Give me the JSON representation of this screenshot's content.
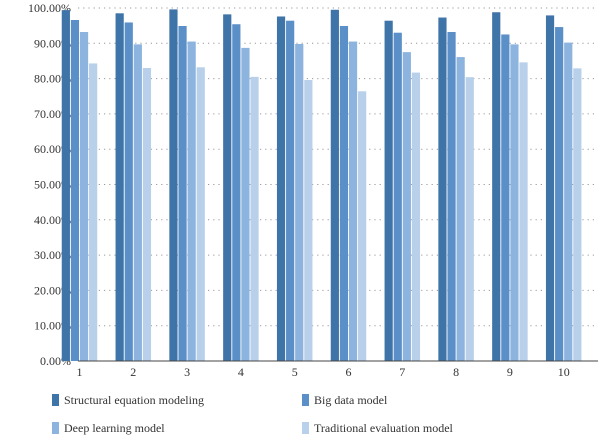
{
  "colors": {
    "series": [
      "#3f74a8",
      "#5b8fc8",
      "#8db4de",
      "#b9d0ea"
    ],
    "grid": "#9a9a9a",
    "axis": "#444444"
  },
  "chart_data": {
    "type": "bar",
    "categories": [
      "1",
      "2",
      "3",
      "4",
      "5",
      "6",
      "7",
      "8",
      "9",
      "10"
    ],
    "series": [
      {
        "name": "Structural equation modeling",
        "values": [
          99.4,
          98.5,
          99.6,
          98.2,
          97.6,
          99.5,
          96.4,
          97.3,
          98.8,
          97.9
        ]
      },
      {
        "name": "Big data model",
        "values": [
          96.6,
          95.9,
          94.9,
          95.4,
          96.4,
          94.9,
          93.0,
          93.2,
          92.5,
          94.6
        ]
      },
      {
        "name": "Deep learning model",
        "values": [
          93.2,
          89.7,
          90.5,
          88.7,
          89.8,
          90.5,
          87.5,
          86.1,
          89.7,
          90.2
        ]
      },
      {
        "name": "Traditional evaluation model",
        "values": [
          84.3,
          83.0,
          83.2,
          80.5,
          79.6,
          76.4,
          81.7,
          80.4,
          84.6,
          82.9
        ]
      }
    ],
    "ylim": [
      0,
      100
    ],
    "yticks": [
      "0.00%",
      "10.00%",
      "20.00%",
      "30.00%",
      "40.00%",
      "50.00%",
      "60.00%",
      "70.00%",
      "80.00%",
      "90.00%",
      "100.00%"
    ],
    "grid": "horizontal dotted",
    "legend_position": "bottom"
  }
}
